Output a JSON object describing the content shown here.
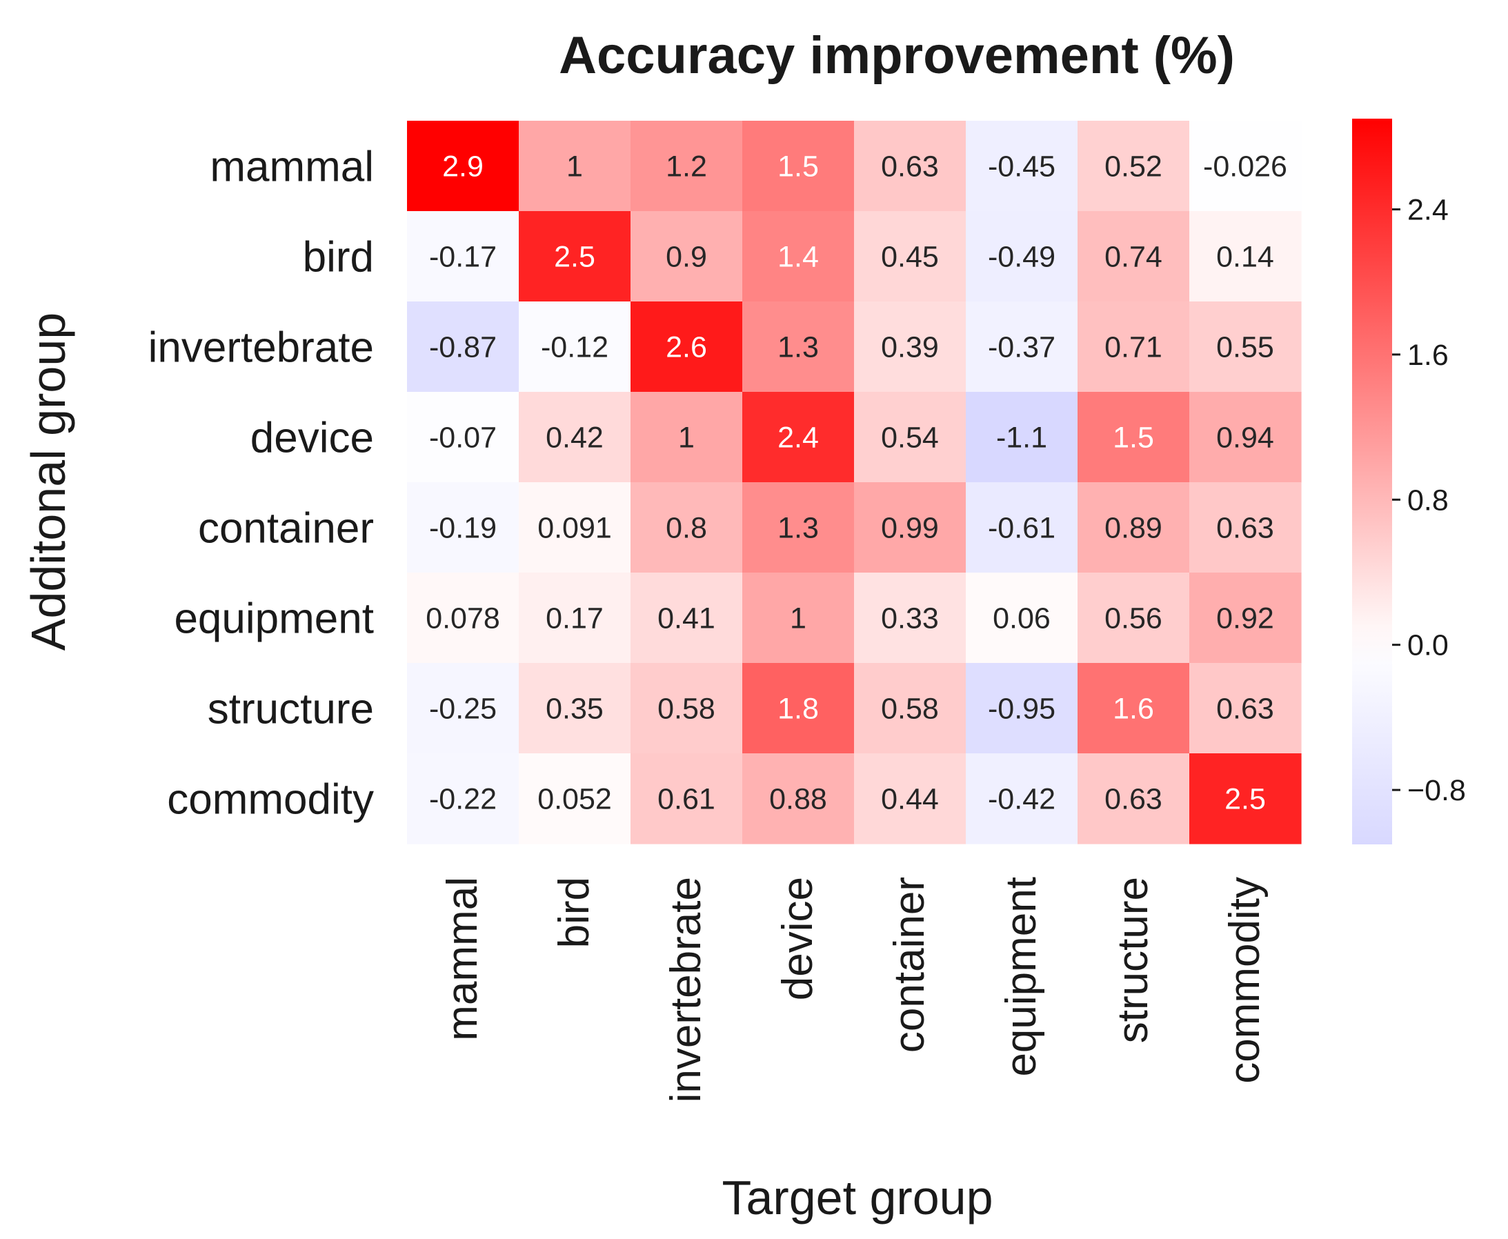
{
  "chart_data": {
    "type": "heatmap",
    "title": "Accuracy improvement (%)",
    "xlabel": "Target group",
    "ylabel": "Additonal group",
    "x_categories": [
      "mammal",
      "bird",
      "invertebrate",
      "device",
      "container",
      "equipment",
      "structure",
      "commodity"
    ],
    "y_categories": [
      "mammal",
      "bird",
      "invertebrate",
      "device",
      "container",
      "equipment",
      "structure",
      "commodity"
    ],
    "values": [
      [
        2.9,
        1,
        1.2,
        1.5,
        0.63,
        -0.45,
        0.52,
        -0.026
      ],
      [
        -0.17,
        2.5,
        0.9,
        1.4,
        0.45,
        -0.49,
        0.74,
        0.14
      ],
      [
        -0.87,
        -0.12,
        2.6,
        1.3,
        0.39,
        -0.37,
        0.71,
        0.55
      ],
      [
        -0.07,
        0.42,
        1,
        2.4,
        0.54,
        -1.1,
        1.5,
        0.94
      ],
      [
        -0.19,
        0.091,
        0.8,
        1.3,
        0.99,
        -0.61,
        0.89,
        0.63
      ],
      [
        0.078,
        0.17,
        0.41,
        1,
        0.33,
        0.06,
        0.56,
        0.92
      ],
      [
        -0.25,
        0.35,
        0.58,
        1.8,
        0.58,
        -0.95,
        1.6,
        0.63
      ],
      [
        -0.22,
        0.052,
        0.61,
        0.88,
        0.44,
        -0.42,
        0.63,
        2.5
      ]
    ],
    "value_labels": [
      [
        "2.9",
        "1",
        "1.2",
        "1.5",
        "0.63",
        "-0.45",
        "0.52",
        "-0.026"
      ],
      [
        "-0.17",
        "2.5",
        "0.9",
        "1.4",
        "0.45",
        "-0.49",
        "0.74",
        "0.14"
      ],
      [
        "-0.87",
        "-0.12",
        "2.6",
        "1.3",
        "0.39",
        "-0.37",
        "0.71",
        "0.55"
      ],
      [
        "-0.07",
        "0.42",
        "1",
        "2.4",
        "0.54",
        "-1.1",
        "1.5",
        "0.94"
      ],
      [
        "-0.19",
        "0.091",
        "0.8",
        "1.3",
        "0.99",
        "-0.61",
        "0.89",
        "0.63"
      ],
      [
        "0.078",
        "0.17",
        "0.41",
        "1",
        "0.33",
        "0.06",
        "0.56",
        "0.92"
      ],
      [
        "-0.25",
        "0.35",
        "0.58",
        "1.8",
        "0.58",
        "-0.95",
        "1.6",
        "0.63"
      ],
      [
        "-0.22",
        "0.052",
        "0.61",
        "0.88",
        "0.44",
        "-0.42",
        "0.63",
        "2.5"
      ]
    ],
    "colorbar": {
      "vmin": -1.1,
      "vmax": 2.9,
      "center": 0,
      "ticks": [
        2.4,
        1.6,
        0.8,
        0.0,
        -0.8
      ],
      "tick_labels": [
        "2.4",
        "1.6",
        "0.8",
        "0.0",
        "−0.8"
      ]
    },
    "colormap": {
      "negative_end": "#9999ff",
      "center": "#ffffff",
      "positive_end": "#ff0000"
    },
    "text_colors": {
      "dark": "#262626",
      "light": "#ffffff"
    }
  }
}
